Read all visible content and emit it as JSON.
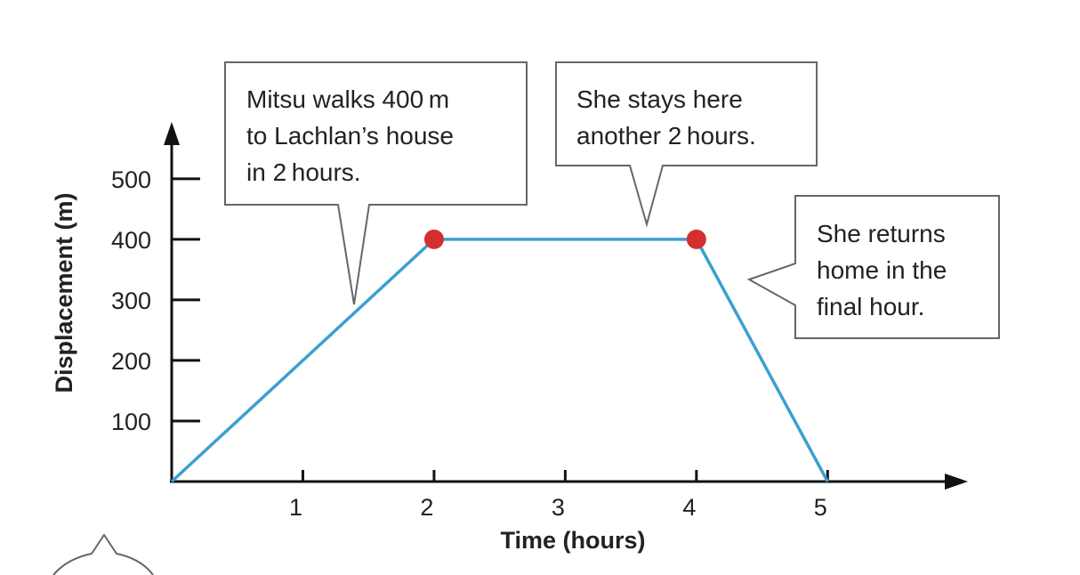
{
  "chart_data": {
    "type": "line",
    "xlabel": "Time (hours)",
    "ylabel": "Displacement (m)",
    "x_ticks": [
      "1",
      "2",
      "3",
      "4",
      "5"
    ],
    "y_ticks": [
      "100",
      "200",
      "300",
      "400",
      "500"
    ],
    "xlim": [
      0,
      5.9
    ],
    "ylim": [
      0,
      560
    ],
    "grid": false,
    "line_color": "#3aa0d0",
    "marker_color": "#d42f2f",
    "series": [
      {
        "x": [
          0,
          2,
          4,
          5
        ],
        "y": [
          0,
          400,
          400,
          0
        ]
      }
    ],
    "markers": [
      {
        "x": 2,
        "y": 400
      },
      {
        "x": 4,
        "y": 400
      }
    ],
    "annotations": [
      {
        "lines": [
          "Mitsu walks 400 m",
          "to Lachlan’s house",
          "in 2 hours."
        ]
      },
      {
        "lines": [
          "She stays here",
          "another 2 hours."
        ]
      },
      {
        "lines": [
          "She returns",
          "home in the",
          "final hour."
        ]
      }
    ]
  }
}
